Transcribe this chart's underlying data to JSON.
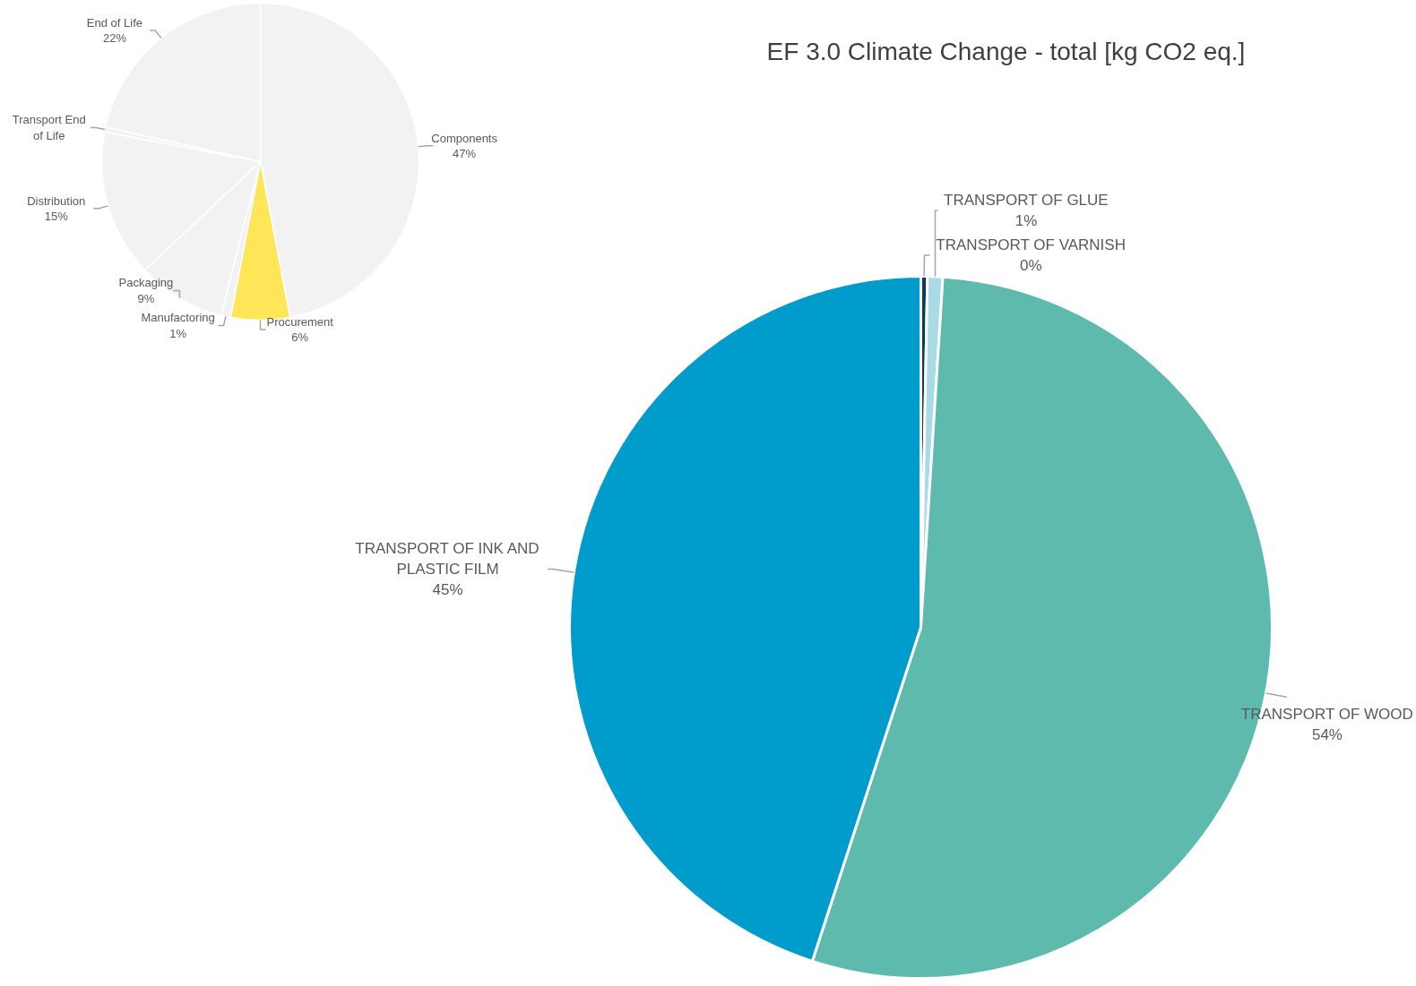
{
  "chart_data": [
    {
      "type": "pie",
      "categories": [
        "Components",
        "Procurement",
        "Manufactoring",
        "Packaging",
        "Distribution",
        "Transport End of Life",
        "End of Life"
      ],
      "values": [
        47,
        6,
        1,
        9,
        15,
        0.5,
        21.5
      ],
      "colors": [
        "#f2f2f2",
        "#ffe558",
        "#f2f2f2",
        "#f2f2f2",
        "#f2f2f2",
        "#f2f2f2",
        "#f2f2f2"
      ],
      "value_labels": [
        "47%",
        "6%",
        "1%",
        "9%",
        "15%",
        null,
        "22%"
      ]
    },
    {
      "type": "pie",
      "title": "EF 3.0 Climate Change - total [kg CO2 eq.]",
      "categories": [
        "TRANSPORT OF VARNISH",
        "TRANSPORT OF GLUE",
        "TRANSPORT OF WOOD",
        "TRANSPORT OF INK AND PLASTIC FILM"
      ],
      "values": [
        0.3,
        0.7,
        54,
        45
      ],
      "colors": [
        "#0b3a5c",
        "#a8dbe6",
        "#5dbaad",
        "#009ccb"
      ],
      "value_labels": [
        "0%",
        "1%",
        "54%",
        "45%"
      ]
    }
  ]
}
